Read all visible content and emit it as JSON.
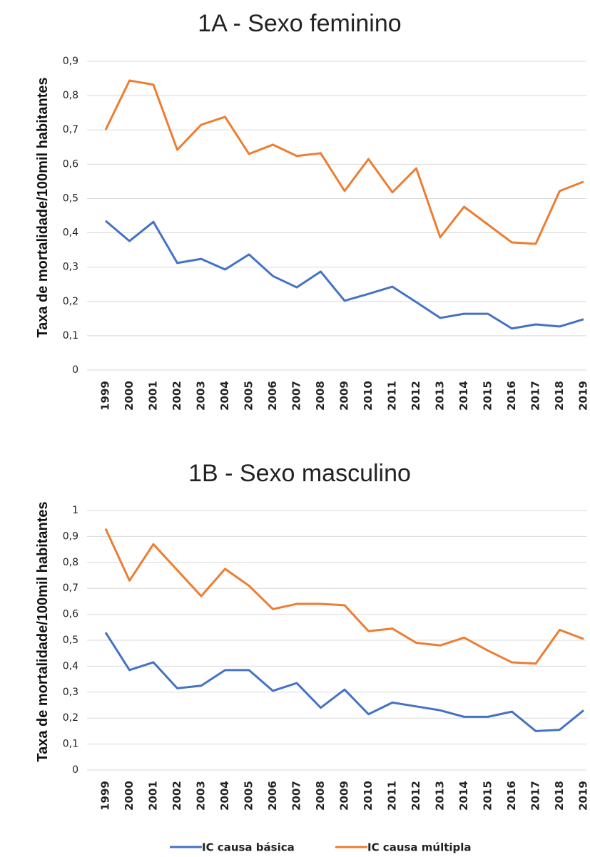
{
  "chart_data": [
    {
      "type": "line",
      "title": "1A - Sexo feminino",
      "y_label": "Taxa de mortalidade/100mil habitantes",
      "categories": [
        "1999",
        "2000",
        "2001",
        "2002",
        "2003",
        "2004",
        "2005",
        "2006",
        "2007",
        "2008",
        "2009",
        "2010",
        "2011",
        "2012",
        "2013",
        "2014",
        "2015",
        "2016",
        "2017",
        "2018",
        "2019"
      ],
      "series": [
        {
          "color": "#4472c4",
          "values": [
            0.435,
            0.376,
            0.432,
            0.312,
            0.324,
            0.293,
            0.337,
            0.274,
            0.241,
            0.287,
            0.202,
            0.222,
            0.243,
            0.198,
            0.152,
            0.164,
            0.164,
            0.121,
            0.133,
            0.127,
            0.148
          ]
        },
        {
          "color": "#ed7d31",
          "values": [
            0.7,
            0.844,
            0.832,
            0.642,
            0.715,
            0.738,
            0.63,
            0.657,
            0.624,
            0.632,
            0.522,
            0.615,
            0.518,
            0.588,
            0.387,
            0.476,
            0.424,
            0.372,
            0.368,
            0.522,
            0.549
          ]
        }
      ],
      "ylim": [
        0,
        0.9
      ],
      "yticks": [
        0,
        {
          "value": 0.1,
          "label": "0,1"
        },
        {
          "value": 0.2,
          "label": "0,2"
        },
        {
          "value": 0.3,
          "label": "0,3"
        },
        {
          "value": 0.4,
          "label": "0,4"
        },
        {
          "value": 0.5,
          "label": "0,5"
        },
        {
          "value": 0.6,
          "label": "0,6"
        },
        {
          "value": 0.7,
          "label": "0,7"
        },
        {
          "value": 0.8,
          "label": "0,8"
        },
        {
          "value": 0.9,
          "label": "0,9"
        }
      ],
      "grid": true
    },
    {
      "type": "line",
      "title": "1B - Sexo masculino",
      "y_label": "Taxa de mortalidade/100mil habitantes",
      "categories": [
        "1999",
        "2000",
        "2001",
        "2002",
        "2003",
        "2004",
        "2005",
        "2006",
        "2007",
        "2008",
        "2009",
        "2010",
        "2011",
        "2012",
        "2013",
        "2014",
        "2015",
        "2016",
        "2017",
        "2018",
        "2019"
      ],
      "series": [
        {
          "name": "IC causa básica",
          "color": "#4472c4",
          "values": [
            0.53,
            0.385,
            0.415,
            0.315,
            0.325,
            0.385,
            0.385,
            0.305,
            0.335,
            0.24,
            0.31,
            0.215,
            0.26,
            0.245,
            0.23,
            0.205,
            0.205,
            0.225,
            0.15,
            0.155,
            0.23
          ]
        },
        {
          "name": "IC causa múltipla",
          "color": "#ed7d31",
          "values": [
            0.93,
            0.73,
            0.87,
            0.77,
            0.67,
            0.775,
            0.71,
            0.62,
            0.64,
            0.64,
            0.635,
            0.535,
            0.545,
            0.49,
            0.48,
            0.51,
            0.46,
            0.415,
            0.41,
            0.54,
            0.505
          ]
        }
      ],
      "ylim": [
        0,
        1
      ],
      "yticks": [
        0,
        {
          "value": 0.1,
          "label": "0,1"
        },
        {
          "value": 0.2,
          "label": "0,2"
        },
        {
          "value": 0.3,
          "label": "0,3"
        },
        {
          "value": 0.4,
          "label": "0,4"
        },
        {
          "value": 0.5,
          "label": "0,5"
        },
        {
          "value": 0.6,
          "label": "0,6"
        },
        {
          "value": 0.7,
          "label": "0,7"
        },
        {
          "value": 0.8,
          "label": "0,8"
        },
        {
          "value": 0.9,
          "label": "0,9"
        },
        1
      ],
      "grid": true
    }
  ]
}
